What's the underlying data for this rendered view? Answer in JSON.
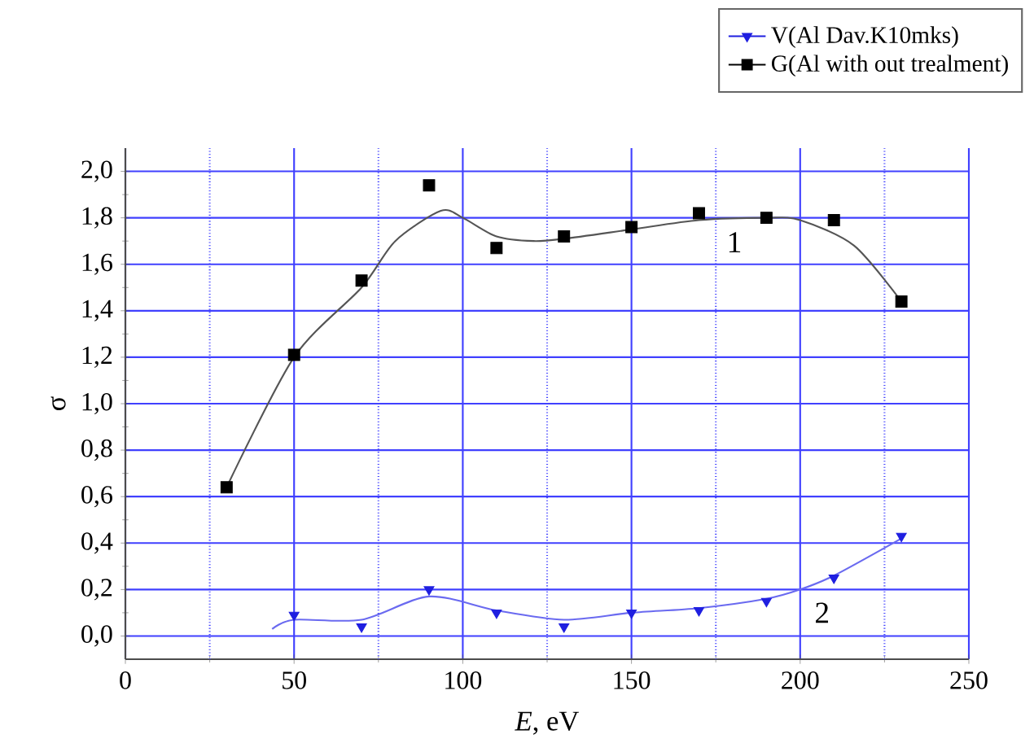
{
  "chart_data": {
    "type": "scatter",
    "xlabel": "*E*, eV",
    "ylabel": "σ",
    "xlim": [
      0,
      250
    ],
    "ylim": [
      -0.1,
      2.1
    ],
    "xticks": [
      0,
      {
        "value": 25,
        "label": null
      },
      50,
      {
        "value": 75,
        "label": null
      },
      100,
      {
        "value": 125,
        "label": null
      },
      150,
      {
        "value": 175,
        "label": null
      },
      200,
      {
        "value": 225,
        "label": null
      },
      250
    ],
    "yticks": [
      {
        "value": 0.0,
        "label": "0,0"
      },
      {
        "value": 0.2,
        "label": "0,2"
      },
      {
        "value": 0.4,
        "label": "0,4"
      },
      {
        "value": 0.6,
        "label": "0,6"
      },
      {
        "value": 0.8,
        "label": "0,8"
      },
      {
        "value": 1.0,
        "label": "1,0"
      },
      {
        "value": 1.2,
        "label": "1,2"
      },
      {
        "value": 1.4,
        "label": "1,4"
      },
      {
        "value": 1.6,
        "label": "1,6"
      },
      {
        "value": 1.8,
        "label": "1,8"
      },
      {
        "value": 2.0,
        "label": "2,0"
      }
    ],
    "grid": true,
    "legend": "top right",
    "series": [
      {
        "name": "V(Al Dav.K10mks)",
        "marker": "triangle",
        "color": "#1f1fe0",
        "x": [
          50,
          70,
          90,
          110,
          130,
          150,
          170,
          190,
          210,
          230
        ],
        "values": [
          0.09,
          0.04,
          0.2,
          0.1,
          0.04,
          0.1,
          0.11,
          0.15,
          0.25,
          0.43
        ]
      },
      {
        "name": "G(Al with out trealment)",
        "marker": "square",
        "color": "#000000",
        "x": [
          30,
          50,
          70,
          90,
          110,
          130,
          150,
          170,
          190,
          210,
          230
        ],
        "values": [
          0.64,
          1.21,
          1.53,
          1.94,
          1.67,
          1.72,
          1.76,
          1.82,
          1.8,
          1.79,
          1.44
        ]
      },
      {
        "type": "line",
        "color": "#6a6af0",
        "x": [
          43.5,
          50,
          70,
          90,
          110,
          130,
          150,
          170,
          190,
          200,
          210,
          230
        ],
        "values": [
          0.03,
          0.07,
          0.07,
          0.17,
          0.11,
          0.07,
          0.1,
          0.12,
          0.16,
          0.2,
          0.26,
          0.42
        ]
      },
      {
        "type": "line",
        "color": "#555555",
        "x": [
          30,
          50,
          70,
          80,
          93.5,
          100,
          110,
          121,
          130,
          150,
          170,
          190,
          200,
          216,
          230
        ],
        "values": [
          0.64,
          1.2,
          1.5,
          1.7,
          1.83,
          1.8,
          1.72,
          1.7,
          1.71,
          1.75,
          1.79,
          1.8,
          1.79,
          1.68,
          1.44
        ]
      }
    ],
    "annotations": [
      "1",
      "2"
    ]
  }
}
